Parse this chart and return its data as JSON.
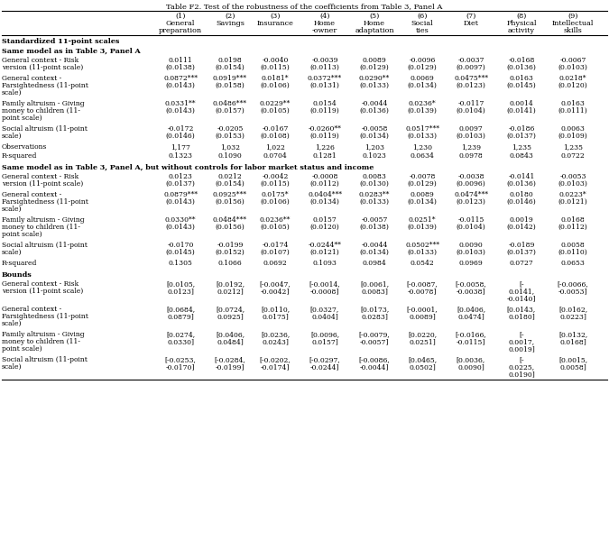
{
  "title": "Table F2. Test of the robustness of the coefficients from Table 3, Panel A",
  "col_headers_line1": [
    "",
    "(1)",
    "(2)",
    "(3)",
    "(4)",
    "(5)",
    "(6)",
    "(7)",
    "(8)",
    "(9)"
  ],
  "col_headers_line2": [
    "",
    "General",
    "Savings",
    "Insurance",
    "Home",
    "Home",
    "Social",
    "Diet",
    "Physical",
    "Intellectual"
  ],
  "col_headers_line3": [
    "",
    "preparation",
    "",
    "",
    "-owner",
    "adaptation",
    "ties",
    "",
    "activity",
    "skills"
  ],
  "section1": "Standardized 11-point scales",
  "section2": "Same model as in Table 3, Panel A",
  "panel_a": [
    {
      "label": [
        "General context - Risk",
        "version (11-point scale)"
      ],
      "vals": [
        "0.0111",
        "0.0198",
        "-0.0040",
        "-0.0039",
        "0.0089",
        "-0.0096",
        "-0.0037",
        "-0.0168",
        "-0.0067"
      ],
      "ses": [
        "(0.0138)",
        "(0.0154)",
        "(0.0115)",
        "(0.0113)",
        "(0.0129)",
        "(0.0129)",
        "(0.0097)",
        "(0.0136)",
        "(0.0103)"
      ]
    },
    {
      "label": [
        "General context -",
        "Farsightedness (11-point",
        "scale)"
      ],
      "vals": [
        "0.0872***",
        "0.0919***",
        "0.0181*",
        "0.0372***",
        "0.0290**",
        "0.0069",
        "0.0475***",
        "0.0163",
        "0.0218*"
      ],
      "ses": [
        "(0.0143)",
        "(0.0158)",
        "(0.0106)",
        "(0.0131)",
        "(0.0133)",
        "(0.0134)",
        "(0.0123)",
        "(0.0145)",
        "(0.0120)"
      ]
    },
    {
      "label": [
        "Family altruism - Giving",
        "money to children (11-",
        "point scale)"
      ],
      "vals": [
        "0.0331**",
        "0.0486***",
        "0.0229**",
        "0.0154",
        "-0.0044",
        "0.0236*",
        "-0.0117",
        "0.0014",
        "0.0163"
      ],
      "ses": [
        "(0.0143)",
        "(0.0157)",
        "(0.0105)",
        "(0.0119)",
        "(0.0136)",
        "(0.0139)",
        "(0.0104)",
        "(0.0141)",
        "(0.0111)"
      ]
    },
    {
      "label": [
        "Social altruism (11-point",
        "scale)"
      ],
      "vals": [
        "-0.0172",
        "-0.0205",
        "-0.0167",
        "-0.0260**",
        "-0.0058",
        "0.0517***",
        "0.0097",
        "-0.0186",
        "0.0063"
      ],
      "ses": [
        "(0.0146)",
        "(0.0153)",
        "(0.0108)",
        "(0.0119)",
        "(0.0134)",
        "(0.0133)",
        "(0.0103)",
        "(0.0137)",
        "(0.0109)"
      ]
    }
  ],
  "obs_row": [
    "Observations",
    "1,177",
    "1,032",
    "1,022",
    "1,226",
    "1,203",
    "1,230",
    "1,239",
    "1,235",
    "1,235"
  ],
  "rsq_row_a": [
    "R-squared",
    "0.1323",
    "0.1090",
    "0.0704",
    "0.1281",
    "0.1023",
    "0.0634",
    "0.0978",
    "0.0843",
    "0.0722"
  ],
  "section3": "Same model as in Table 3, Panel A, but without controls for labor market status and income",
  "panel_b": [
    {
      "label": [
        "General context - Risk",
        "version (11-point scale)"
      ],
      "vals": [
        "0.0123",
        "0.0212",
        "-0.0042",
        "-0.0008",
        "0.0083",
        "-0.0078",
        "-0.0038",
        "-0.0141",
        "-0.0053"
      ],
      "ses": [
        "(0.0137)",
        "(0.0154)",
        "(0.0115)",
        "(0.0112)",
        "(0.0130)",
        "(0.0129)",
        "(0.0096)",
        "(0.0136)",
        "(0.0103)"
      ]
    },
    {
      "label": [
        "General context -",
        "Farsightedness (11-point",
        "scale)"
      ],
      "vals": [
        "0.0879***",
        "0.0925***",
        "0.0175*",
        "0.0404***",
        "0.0283**",
        "0.0089",
        "0.0474***",
        "0.0180",
        "0.0223*"
      ],
      "ses": [
        "(0.0143)",
        "(0.0156)",
        "(0.0106)",
        "(0.0134)",
        "(0.0133)",
        "(0.0134)",
        "(0.0123)",
        "(0.0146)",
        "(0.0121)"
      ]
    },
    {
      "label": [
        "Family altruism - Giving",
        "money to children (11-",
        "point scale)"
      ],
      "vals": [
        "0.0330**",
        "0.0484***",
        "0.0236**",
        "0.0157",
        "-0.0057",
        "0.0251*",
        "-0.0115",
        "0.0019",
        "0.0168"
      ],
      "ses": [
        "(0.0143)",
        "(0.0156)",
        "(0.0105)",
        "(0.0120)",
        "(0.0138)",
        "(0.0139)",
        "(0.0104)",
        "(0.0142)",
        "(0.0112)"
      ]
    },
    {
      "label": [
        "Social altruism (11-point",
        "scale)"
      ],
      "vals": [
        "-0.0170",
        "-0.0199",
        "-0.0174",
        "-0.0244**",
        "-0.0044",
        "0.0502***",
        "0.0090",
        "-0.0189",
        "0.0058"
      ],
      "ses": [
        "(0.0145)",
        "(0.0152)",
        "(0.0107)",
        "(0.0121)",
        "(0.0134)",
        "(0.0133)",
        "(0.0103)",
        "(0.0137)",
        "(0.0110)"
      ]
    }
  ],
  "rsq_row_b": [
    "R-squared",
    "0.1305",
    "0.1066",
    "0.0692",
    "0.1093",
    "0.0984",
    "0.0542",
    "0.0969",
    "0.0727",
    "0.0653"
  ],
  "section4": "Bounds",
  "bounds": [
    {
      "label": [
        "General context - Risk",
        "version (11-point scale)"
      ],
      "vals": [
        "[0.0105,",
        "[0.0192,",
        "[-0.0047,",
        "[-0.0014,",
        "[0.0061,",
        "[-0.0087,",
        "[-0.0058,",
        "[-",
        "[-0.0066,"
      ],
      "ses": [
        "0.0123]",
        "0.0212]",
        "-0.0042]",
        "-0.0008]",
        "0.0083]",
        "-0.0078]",
        "-0.0038]",
        "0.0141,",
        "-0.0053]"
      ],
      "ses2": [
        "",
        "",
        "",
        "",
        "",
        "",
        "",
        "-0.0140]",
        ""
      ]
    },
    {
      "label": [
        "General context -",
        "Farsightedness (11-point",
        "scale)"
      ],
      "vals": [
        "[0.0684,",
        "[0.0724,",
        "[0.0110,",
        "[0.0327,",
        "[0.0173,",
        "[-0.0001,",
        "[0.0406,",
        "[0.0143,",
        "[0.0162,"
      ],
      "ses": [
        "0.0879]",
        "0.0925]",
        "0.0175]",
        "0.0404]",
        "0.0283]",
        "0.0089]",
        "0.0474]",
        "0.0180]",
        "0.0223]"
      ],
      "ses2": [
        "",
        "",
        "",
        "",
        "",
        "",
        "",
        "",
        ""
      ]
    },
    {
      "label": [
        "Family altruism - Giving",
        "money to children (11-",
        "point scale)"
      ],
      "vals": [
        "[0.0274,",
        "[0.0406,",
        "[0.0236,",
        "[0.0096,",
        "[-0.0079,",
        "[0.0220,",
        "[-0.0166,",
        "[-",
        "[0.0132,"
      ],
      "ses": [
        "0.0330]",
        "0.0484]",
        "0.0243]",
        "0.0157]",
        "-0.0057]",
        "0.0251]",
        "-0.0115]",
        "0.0017,",
        "0.0168]"
      ],
      "ses2": [
        "",
        "",
        "",
        "",
        "",
        "",
        "",
        "0.0019]",
        ""
      ]
    },
    {
      "label": [
        "Social altruism (11-point",
        "scale)"
      ],
      "vals": [
        "[-0.0253,",
        "[-0.0284,",
        "[-0.0202,",
        "[-0.0297,",
        "[-0.0086,",
        "[0.0465,",
        "[0.0036,",
        "[-",
        "[0.0015,"
      ],
      "ses": [
        "-0.0170]",
        "-0.0199]",
        "-0.0174]",
        "-0.0244]",
        "-0.0044]",
        "0.0502]",
        "0.0090]",
        "0.0225,",
        "0.0058]"
      ],
      "ses2": [
        "",
        "",
        "",
        "",
        "",
        "",
        "",
        "0.0190]",
        ""
      ]
    }
  ]
}
